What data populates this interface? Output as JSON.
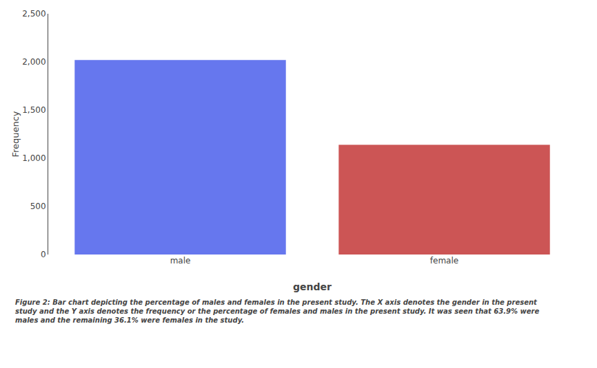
{
  "chart_data": {
    "type": "bar",
    "categories": [
      "male",
      "female"
    ],
    "values": [
      2020,
      1140
    ],
    "colors": [
      "#6677EE",
      "#CC5555"
    ],
    "xlabel": "gender",
    "ylabel": "Frequency",
    "ylim": [
      0,
      2500
    ],
    "yticks": [
      0,
      500,
      {
        "value": 1000,
        "label": "1,000"
      },
      {
        "value": 1500,
        "label": "1,500"
      },
      {
        "value": 2000,
        "label": "2,000"
      },
      {
        "value": 2500,
        "label": "2,500"
      }
    ],
    "grid": false,
    "caption": "Figure 2: Bar chart depicting the percentage of males and females in the present study. The X axis denotes the gender in the present study and the Y axis denotes the frequency or the percentage of females and males in the present study. It was seen that 63.9% were males and the remaining 36.1% were females in the study."
  }
}
